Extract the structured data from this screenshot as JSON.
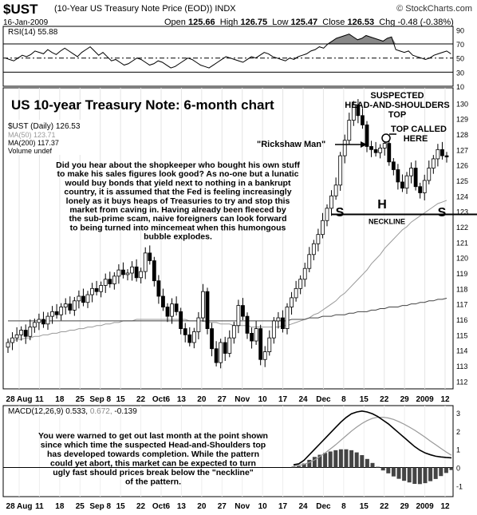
{
  "header": {
    "symbol": "$UST",
    "name": "(10-Year US Treasury Note Price (EOD)) INDX",
    "brand": "© StockCharts.com",
    "date": "16-Jan-2009",
    "open_label": "Open",
    "open": "125.66",
    "high_label": "High",
    "high": "126.75",
    "low_label": "Low",
    "low": "125.47",
    "close_label": "Close",
    "close": "126.53",
    "chg_label": "Chg",
    "chg": "-0.48 (-0.38%)"
  },
  "chart_data": [
    {
      "type": "line",
      "panel": "rsi",
      "legend": "RSI(14) 55.88",
      "ylim": [
        10,
        95
      ],
      "ticks": [
        10,
        30,
        50,
        70,
        90
      ],
      "overbought": 70,
      "oversold": 30,
      "midline": 50,
      "values": [
        50,
        48,
        46,
        50,
        54,
        52,
        55,
        60,
        58,
        56,
        62,
        58,
        55,
        60,
        64,
        60,
        56,
        52,
        58,
        62,
        66,
        60,
        54,
        58,
        52,
        46,
        48,
        44,
        40,
        42,
        46,
        50,
        48,
        44,
        40,
        42,
        46,
        44,
        40,
        36,
        38,
        42,
        46,
        50,
        48,
        44,
        40,
        38,
        36,
        40,
        44,
        48,
        52,
        50,
        48,
        46,
        44,
        48,
        52,
        50,
        54,
        58,
        56,
        52,
        50,
        48,
        46,
        50,
        48,
        52,
        54,
        56,
        60,
        62,
        66,
        64,
        70,
        74,
        78,
        80,
        82,
        84,
        80,
        76,
        78,
        82,
        80,
        78,
        76,
        74,
        78,
        80,
        62,
        60,
        58,
        60,
        54,
        52,
        50,
        48,
        50,
        54,
        56,
        58,
        60,
        56
      ]
    },
    {
      "type": "candlestick",
      "panel": "price",
      "legend": {
        "price": "$UST (Daily) 126.53",
        "ma50": "MA(50) 123.71",
        "ma200": "MA(200) 117.37",
        "volume": "Volume undef"
      },
      "ylim": [
        111.5,
        131
      ],
      "yticks": [
        112,
        113,
        114,
        115,
        116,
        117,
        118,
        119,
        120,
        121,
        122,
        123,
        124,
        125,
        126,
        127,
        128,
        129,
        130
      ],
      "xticks": [
        "28 Aug",
        "11",
        "18",
        "25",
        "Sep 8",
        "15",
        "22",
        "Oct6",
        "13",
        "20",
        "27",
        "Nov",
        "10",
        "17",
        "24",
        "Dec",
        "8",
        "15",
        "22",
        "29",
        "2009",
        "12"
      ],
      "neckline": 122.8,
      "closes": [
        114.5,
        114.8,
        115.0,
        115.3,
        114.9,
        115.5,
        115.8,
        116.0,
        115.7,
        116.2,
        116.5,
        116.3,
        116.8,
        117.0,
        116.6,
        117.2,
        117.5,
        117.1,
        117.6,
        118.0,
        117.8,
        118.2,
        118.6,
        118.3,
        118.8,
        119.2,
        118.9,
        119.0,
        119.4,
        118.7,
        119.1,
        120.3,
        119.8,
        118.5,
        117.5,
        116.8,
        116.2,
        117.0,
        116.5,
        115.4,
        115.0,
        114.5,
        115.2,
        116.1,
        117.8,
        115.4,
        114.1,
        113.2,
        114.5,
        113.8,
        114.8,
        115.6,
        116.9,
        116.2,
        115.1,
        114.6,
        115.4,
        113.4,
        113.9,
        114.8,
        115.9,
        116.1,
        115.4,
        116.8,
        117.4,
        118.0,
        118.6,
        119.3,
        120.2,
        120.9,
        121.5,
        122.4,
        123.2,
        124.0,
        124.7,
        126.6,
        127.6,
        128.9,
        129.9,
        129.2,
        128.6,
        127.2,
        127.0,
        126.8,
        127.1,
        127.4,
        126.2,
        125.7,
        124.9,
        124.5,
        125.3,
        125.8,
        124.6,
        124.2,
        125.0,
        125.8,
        126.4,
        127.0,
        126.6,
        126.53
      ],
      "ma50": [
        114.6,
        114.6,
        114.7,
        114.7,
        114.8,
        114.8,
        114.9,
        114.9,
        115.0,
        115.0,
        115.1,
        115.1,
        115.2,
        115.2,
        115.3,
        115.3,
        115.4,
        115.4,
        115.5,
        115.5,
        115.6,
        115.6,
        115.7,
        115.7,
        115.8,
        115.8,
        115.9,
        115.9,
        115.9,
        116.0,
        116.0,
        116.0,
        116.0,
        116.0,
        116.0,
        116.0,
        116.0,
        116.0,
        116.0,
        116.0,
        116.0,
        115.9,
        115.9,
        115.9,
        115.9,
        115.8,
        115.8,
        115.8,
        115.7,
        115.7,
        115.7,
        115.6,
        115.6,
        115.6,
        115.6,
        115.5,
        115.5,
        115.5,
        115.5,
        115.5,
        115.5,
        115.5,
        115.6,
        115.6,
        115.7,
        115.8,
        115.9,
        116.0,
        116.1,
        116.3,
        116.4,
        116.6,
        116.8,
        117.0,
        117.2,
        117.5,
        117.7,
        118.0,
        118.3,
        118.6,
        118.9,
        119.2,
        119.6,
        119.9,
        120.2,
        120.6,
        120.9,
        121.2,
        121.5,
        121.8,
        122.0,
        122.3,
        122.5,
        122.7,
        122.9,
        123.1,
        123.3,
        123.5,
        123.6,
        123.71
      ],
      "ma200": [
        115.9,
        115.9,
        115.9,
        115.9,
        115.9,
        115.9,
        115.9,
        115.9,
        115.9,
        115.9,
        115.9,
        115.9,
        115.9,
        115.9,
        115.9,
        115.9,
        115.9,
        115.9,
        115.9,
        115.9,
        115.9,
        115.9,
        115.9,
        115.9,
        115.9,
        115.9,
        115.9,
        115.9,
        115.9,
        115.9,
        115.9,
        115.9,
        115.9,
        115.9,
        115.9,
        115.9,
        115.9,
        115.9,
        115.9,
        115.9,
        115.9,
        115.9,
        115.9,
        115.9,
        115.9,
        115.9,
        115.9,
        115.9,
        115.9,
        115.9,
        115.9,
        115.9,
        115.9,
        115.9,
        115.9,
        115.9,
        115.9,
        115.9,
        115.9,
        115.9,
        115.9,
        115.9,
        115.9,
        115.9,
        116.0,
        116.0,
        116.0,
        116.0,
        116.1,
        116.1,
        116.1,
        116.2,
        116.2,
        116.2,
        116.3,
        116.3,
        116.3,
        116.4,
        116.4,
        116.5,
        116.5,
        116.5,
        116.6,
        116.6,
        116.7,
        116.7,
        116.8,
        116.8,
        116.8,
        116.9,
        116.9,
        117.0,
        117.0,
        117.1,
        117.1,
        117.2,
        117.2,
        117.3,
        117.3,
        117.37
      ]
    },
    {
      "type": "line",
      "panel": "macd",
      "legend_label": "MACD(12,26,9)",
      "legend_macd": "0.533",
      "legend_signal": "0.672",
      "legend_hist": "-0.139",
      "ylim": [
        -1.6,
        3.4
      ],
      "ticks": [
        -1,
        0,
        1,
        2,
        3
      ],
      "macd": [
        0.15,
        0.2,
        0.4,
        0.7,
        1.0,
        1.3,
        1.6,
        1.9,
        2.2,
        2.5,
        2.75,
        2.95,
        3.05,
        3.1,
        3.05,
        2.95,
        2.8,
        2.6,
        2.4,
        2.15,
        1.9,
        1.65,
        1.4,
        1.15,
        0.95,
        0.8,
        0.7,
        0.62,
        0.58,
        0.55,
        0.53
      ],
      "signal": [
        0.1,
        0.12,
        0.18,
        0.28,
        0.42,
        0.6,
        0.8,
        1.02,
        1.25,
        1.5,
        1.75,
        2.0,
        2.22,
        2.42,
        2.58,
        2.7,
        2.76,
        2.76,
        2.72,
        2.64,
        2.52,
        2.38,
        2.22,
        2.05,
        1.86,
        1.66,
        1.45,
        1.25,
        1.05,
        0.85,
        0.672
      ],
      "histogram": [
        0.05,
        0.08,
        0.22,
        0.42,
        0.58,
        0.7,
        0.8,
        0.88,
        0.95,
        1.0,
        1.0,
        0.95,
        0.83,
        0.68,
        0.47,
        0.25,
        0.04,
        -0.16,
        -0.32,
        -0.49,
        -0.62,
        -0.73,
        -0.82,
        -0.9,
        -0.91,
        -0.86,
        -0.75,
        -0.63,
        -0.47,
        -0.3,
        -0.139
      ]
    }
  ],
  "annotations": {
    "title": "US 10-year Treasury Note: 6-month chart",
    "hs_label": [
      "SUSPECTED",
      "HEAD-AND-SHOULDERS",
      "TOP"
    ],
    "top_called": [
      "TOP CALLED",
      "HERE"
    ],
    "rickshaw": "\"Rickshaw Man\"",
    "s_left": "S",
    "h": "H",
    "s_right": "S",
    "neckline": "NECKLINE",
    "main_text": [
      "Did you hear about the shopkeeper who bought his own stuff",
      "to make his sales figures look good? As no-one but a lunatic",
      "would buy bonds that yield next to nothing in a bankrupt",
      "country, it is assumed that the Fed is feeling increasingly",
      "lonely as it buys heaps of Treasuries to try and stop this",
      "market from caving in. Having already been fleeced by",
      "the sub-prime scam, naive foreigners can look forward",
      "to being turned into mincemeat when this humongous",
      "bubble explodes."
    ],
    "macd_text": [
      "You were warned to get out last month at the point shown",
      "since which time the suspected Head-and-Shoulders top",
      "has developed towards completion. While the pattern",
      "could yet abort, this market can be expected to turn",
      "ugly fast should prices break below the \"neckline\"",
      "of the pattern."
    ]
  },
  "colors": {
    "up": "#ffffff",
    "down": "#000000",
    "ma50": "#999999",
    "ma200": "#444444",
    "rsi_fill": "#888888",
    "macd_signal": "#999999"
  }
}
